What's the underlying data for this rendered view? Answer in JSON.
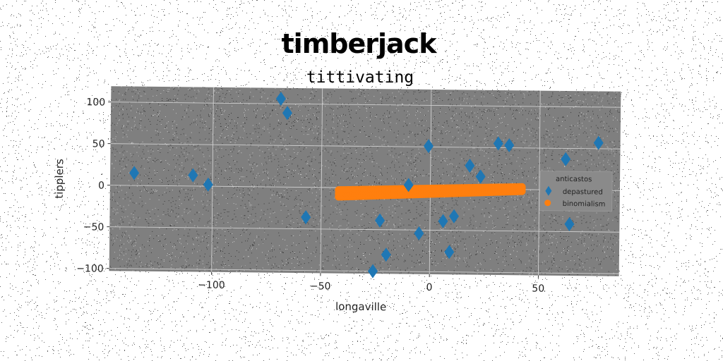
{
  "chart_data": {
    "type": "scatter",
    "title": "timberjack",
    "subtitle": "tittivating",
    "xlabel": "longaville",
    "ylabel": "tipplers",
    "xlim": [
      -147,
      87
    ],
    "ylim": [
      -103,
      119
    ],
    "xticks": [
      -100,
      -50,
      0,
      50
    ],
    "yticks": [
      100,
      50,
      0,
      -50,
      -100
    ],
    "xtick_labels": [
      "−100",
      "−50",
      "0",
      "50"
    ],
    "ytick_labels": [
      "100",
      "50",
      "0",
      "−50",
      "−100"
    ],
    "grid": true,
    "legend": {
      "title": "anticastos",
      "placement": "right",
      "entries": [
        "depastured",
        "binomialism"
      ]
    },
    "colors": {
      "plot_bg": "#7f7f7f",
      "depastured": "#1f77b4",
      "binomialism": "#ff7f0e"
    },
    "series": [
      {
        "name": "depastured",
        "marker": "diamond",
        "points": [
          [
            -136,
            15
          ],
          [
            -109,
            13
          ],
          [
            -102,
            2
          ],
          [
            -69,
            106
          ],
          [
            -66,
            89
          ],
          [
            -57,
            -36
          ],
          [
            -26,
            -100
          ],
          [
            -23,
            -39
          ],
          [
            -20,
            -80
          ],
          [
            -10,
            4
          ],
          [
            -5,
            -54
          ],
          [
            -1,
            51
          ],
          [
            6,
            -39
          ],
          [
            9,
            -76
          ],
          [
            11,
            -33
          ],
          [
            18,
            28
          ],
          [
            23,
            15
          ],
          [
            31,
            55
          ],
          [
            36,
            53
          ],
          [
            62,
            37
          ],
          [
            64,
            -41
          ],
          [
            77,
            57
          ]
        ]
      },
      {
        "name": "binomialism",
        "marker": "circle",
        "x_start": -42,
        "x_end": 42,
        "count": 80,
        "y_left_band": [
          -11,
          -3
        ],
        "y_right_band": [
          -2,
          3
        ]
      }
    ]
  }
}
